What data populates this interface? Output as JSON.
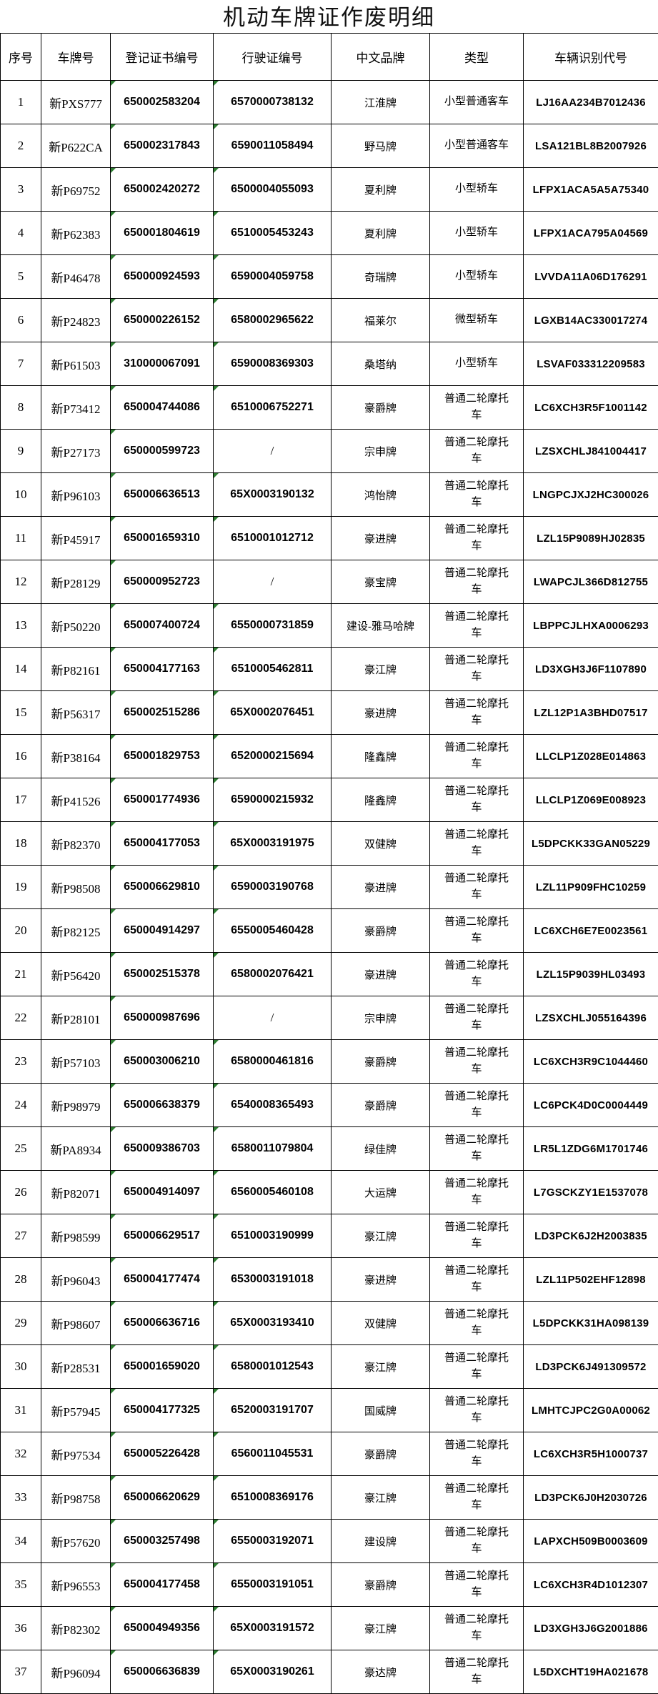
{
  "title": "机动车牌证作废明细",
  "title_color": "#111111",
  "indicator_color": "#2E7D32",
  "indicator_meaning": "number-stored-as-text corner mark",
  "table": {
    "columns": [
      {
        "key": "index",
        "label": "序号"
      },
      {
        "key": "plate",
        "label": "车牌号"
      },
      {
        "key": "reg_no",
        "label": "登记证书编号"
      },
      {
        "key": "lic_no",
        "label": "行驶证编号"
      },
      {
        "key": "brand",
        "label": "中文品牌"
      },
      {
        "key": "type",
        "label": "类型"
      },
      {
        "key": "vin",
        "label": "车辆识别代号"
      }
    ],
    "rows": [
      {
        "index": "1",
        "plate": "新PXS777",
        "reg_no": "650002583204",
        "lic_no": "6570000738132",
        "brand": "江淮牌",
        "type": "小型普通客车",
        "vin": "LJ16AA234B7012436"
      },
      {
        "index": "2",
        "plate": "新P622CA",
        "reg_no": "650002317843",
        "lic_no": "6590011058494",
        "brand": "野马牌",
        "type": "小型普通客车",
        "vin": "LSA121BL8B2007926"
      },
      {
        "index": "3",
        "plate": "新P69752",
        "reg_no": "650002420272",
        "lic_no": "6500004055093",
        "brand": "夏利牌",
        "type": "小型轿车",
        "vin": "LFPX1ACA5A5A75340"
      },
      {
        "index": "4",
        "plate": "新P62383",
        "reg_no": "650001804619",
        "lic_no": "6510005453243",
        "brand": "夏利牌",
        "type": "小型轿车",
        "vin": "LFPX1ACA795A04569"
      },
      {
        "index": "5",
        "plate": "新P46478",
        "reg_no": "650000924593",
        "lic_no": "6590004059758",
        "brand": "奇瑞牌",
        "type": "小型轿车",
        "vin": "LVVDA11A06D176291"
      },
      {
        "index": "6",
        "plate": "新P24823",
        "reg_no": "650000226152",
        "lic_no": "6580002965622",
        "brand": "福莱尔",
        "type": "微型轿车",
        "vin": "LGXB14AC330017274"
      },
      {
        "index": "7",
        "plate": "新P61503",
        "reg_no": "310000067091",
        "lic_no": "6590008369303",
        "brand": "桑塔纳",
        "type": "小型轿车",
        "vin": "LSVAF033312209583"
      },
      {
        "index": "8",
        "plate": "新P73412",
        "reg_no": "650004744086",
        "lic_no": "6510006752271",
        "brand": "豪爵牌",
        "type": "普通二轮摩托车",
        "vin": "LC6XCH3R5F1001142"
      },
      {
        "index": "9",
        "plate": "新P27173",
        "reg_no": "650000599723",
        "lic_no": "/",
        "brand": "宗申牌",
        "type": "普通二轮摩托车",
        "vin": "LZSXCHLJ841004417"
      },
      {
        "index": "10",
        "plate": "新P96103",
        "reg_no": "650006636513",
        "lic_no": "65X0003190132",
        "brand": "鸿怡牌",
        "type": "普通二轮摩托车",
        "vin": "LNGPCJXJ2HC300026"
      },
      {
        "index": "11",
        "plate": "新P45917",
        "reg_no": "650001659310",
        "lic_no": "6510001012712",
        "brand": "豪进牌",
        "type": "普通二轮摩托车",
        "vin": "LZL15P9089HJ02835"
      },
      {
        "index": "12",
        "plate": "新P28129",
        "reg_no": "650000952723",
        "lic_no": "/",
        "brand": "豪宝牌",
        "type": "普通二轮摩托车",
        "vin": "LWAPCJL366D812755"
      },
      {
        "index": "13",
        "plate": "新P50220",
        "reg_no": "650007400724",
        "lic_no": "6550000731859",
        "brand": "建设-雅马哈牌",
        "type": "普通二轮摩托车",
        "vin": "LBPPCJLHXA0006293"
      },
      {
        "index": "14",
        "plate": "新P82161",
        "reg_no": "650004177163",
        "lic_no": "6510005462811",
        "brand": "豪江牌",
        "type": "普通二轮摩托车",
        "vin": "LD3XGH3J6F1107890"
      },
      {
        "index": "15",
        "plate": "新P56317",
        "reg_no": "650002515286",
        "lic_no": "65X0002076451",
        "brand": "豪进牌",
        "type": "普通二轮摩托车",
        "vin": "LZL12P1A3BHD07517"
      },
      {
        "index": "16",
        "plate": "新P38164",
        "reg_no": "650001829753",
        "lic_no": "6520000215694",
        "brand": "隆鑫牌",
        "type": "普通二轮摩托车",
        "vin": "LLCLP1Z028E014863"
      },
      {
        "index": "17",
        "plate": "新P41526",
        "reg_no": "650001774936",
        "lic_no": "6590000215932",
        "brand": "隆鑫牌",
        "type": "普通二轮摩托车",
        "vin": "LLCLP1Z069E008923"
      },
      {
        "index": "18",
        "plate": "新P82370",
        "reg_no": "650004177053",
        "lic_no": "65X0003191975",
        "brand": "双健牌",
        "type": "普通二轮摩托车",
        "vin": "L5DPCKK33GAN05229"
      },
      {
        "index": "19",
        "plate": "新P98508",
        "reg_no": "650006629810",
        "lic_no": "6590003190768",
        "brand": "豪进牌",
        "type": "普通二轮摩托车",
        "vin": "LZL11P909FHC10259"
      },
      {
        "index": "20",
        "plate": "新P82125",
        "reg_no": "650004914297",
        "lic_no": "6550005460428",
        "brand": "豪爵牌",
        "type": "普通二轮摩托车",
        "vin": "LC6XCH6E7E0023561"
      },
      {
        "index": "21",
        "plate": "新P56420",
        "reg_no": "650002515378",
        "lic_no": "6580002076421",
        "brand": "豪进牌",
        "type": "普通二轮摩托车",
        "vin": "LZL15P9039HL03493"
      },
      {
        "index": "22",
        "plate": "新P28101",
        "reg_no": "650000987696",
        "lic_no": "/",
        "brand": "宗申牌",
        "type": "普通二轮摩托车",
        "vin": "LZSXCHLJ055164396"
      },
      {
        "index": "23",
        "plate": "新P57103",
        "reg_no": "650003006210",
        "lic_no": "6580000461816",
        "brand": "豪爵牌",
        "type": "普通二轮摩托车",
        "vin": "LC6XCH3R9C1044460"
      },
      {
        "index": "24",
        "plate": "新P98979",
        "reg_no": "650006638379",
        "lic_no": "6540008365493",
        "brand": "豪爵牌",
        "type": "普通二轮摩托车",
        "vin": "LC6PCK4D0C0004449"
      },
      {
        "index": "25",
        "plate": "新PA8934",
        "reg_no": "650009386703",
        "lic_no": "6580011079804",
        "brand": "绿佳牌",
        "type": "普通二轮摩托车",
        "vin": "LR5L1ZDG6M1701746"
      },
      {
        "index": "26",
        "plate": "新P82071",
        "reg_no": "650004914097",
        "lic_no": "6560005460108",
        "brand": "大运牌",
        "type": "普通二轮摩托车",
        "vin": "L7GSCKZY1E1537078"
      },
      {
        "index": "27",
        "plate": "新P98599",
        "reg_no": "650006629517",
        "lic_no": "6510003190999",
        "brand": "豪江牌",
        "type": "普通二轮摩托车",
        "vin": "LD3PCK6J2H2003835"
      },
      {
        "index": "28",
        "plate": "新P96043",
        "reg_no": "650004177474",
        "lic_no": "6530003191018",
        "brand": "豪进牌",
        "type": "普通二轮摩托车",
        "vin": "LZL11P502EHF12898"
      },
      {
        "index": "29",
        "plate": "新P98607",
        "reg_no": "650006636716",
        "lic_no": "65X0003193410",
        "brand": "双健牌",
        "type": "普通二轮摩托车",
        "vin": "L5DPCKK31HA098139"
      },
      {
        "index": "30",
        "plate": "新P28531",
        "reg_no": "650001659020",
        "lic_no": "6580001012543",
        "brand": "豪江牌",
        "type": "普通二轮摩托车",
        "vin": "LD3PCK6J491309572"
      },
      {
        "index": "31",
        "plate": "新P57945",
        "reg_no": "650004177325",
        "lic_no": "6520003191707",
        "brand": "国威牌",
        "type": "普通二轮摩托车",
        "vin": "LMHTCJPC2G0A00062"
      },
      {
        "index": "32",
        "plate": "新P97534",
        "reg_no": "650005226428",
        "lic_no": "6560011045531",
        "brand": "豪爵牌",
        "type": "普通二轮摩托车",
        "vin": "LC6XCH3R5H1000737"
      },
      {
        "index": "33",
        "plate": "新P98758",
        "reg_no": "650006620629",
        "lic_no": "6510008369176",
        "brand": "豪江牌",
        "type": "普通二轮摩托车",
        "vin": "LD3PCK6J0H2030726"
      },
      {
        "index": "34",
        "plate": "新P57620",
        "reg_no": "650003257498",
        "lic_no": "6550003192071",
        "brand": "建设牌",
        "type": "普通二轮摩托车",
        "vin": "LAPXCH509B0003609"
      },
      {
        "index": "35",
        "plate": "新P96553",
        "reg_no": "650004177458",
        "lic_no": "6550003191051",
        "brand": "豪爵牌",
        "type": "普通二轮摩托车",
        "vin": "LC6XCH3R4D1012307"
      },
      {
        "index": "36",
        "plate": "新P82302",
        "reg_no": "650004949356",
        "lic_no": "65X0003191572",
        "brand": "豪江牌",
        "type": "普通二轮摩托车",
        "vin": "LD3XGH3J6G2001886"
      },
      {
        "index": "37",
        "plate": "新P96094",
        "reg_no": "650006636839",
        "lic_no": "65X0003190261",
        "brand": "豪达牌",
        "type": "普通二轮摩托车",
        "vin": "L5DXCHT19HA021678"
      }
    ]
  }
}
